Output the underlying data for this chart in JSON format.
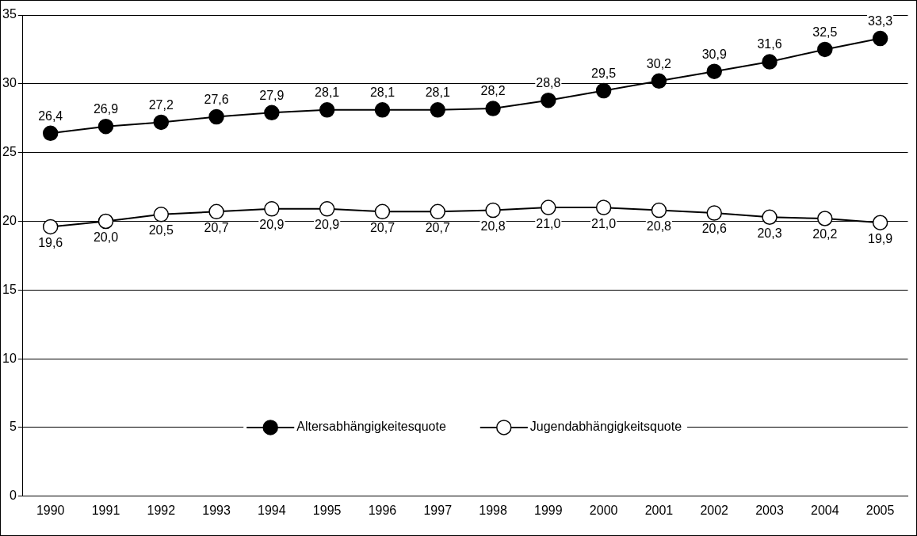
{
  "chart_data": {
    "type": "line",
    "categories": [
      "1990",
      "1991",
      "1992",
      "1993",
      "1994",
      "1995",
      "1996",
      "1997",
      "1998",
      "1999",
      "2000",
      "2001",
      "2002",
      "2003",
      "2004",
      "2005"
    ],
    "series": [
      {
        "name": "Altersabhängigkeitesquote",
        "color": "#000000",
        "values": [
          26.4,
          26.9,
          27.2,
          27.6,
          27.9,
          28.1,
          28.1,
          28.1,
          28.2,
          28.8,
          29.5,
          30.2,
          30.9,
          31.6,
          32.5,
          33.3
        ],
        "value_labels": [
          "26,4",
          "26,9",
          "27,2",
          "27,6",
          "27,9",
          "28,1",
          "28,1",
          "28,1",
          "28,2",
          "28,8",
          "29,5",
          "30,2",
          "30,9",
          "31,6",
          "32,5",
          "33,3"
        ]
      },
      {
        "name": "Jugendabhängigkeitsquote",
        "color": "#ffffff",
        "values": [
          19.6,
          20.0,
          20.5,
          20.7,
          20.9,
          20.9,
          20.7,
          20.7,
          20.8,
          21.0,
          21.0,
          20.8,
          20.6,
          20.3,
          20.2,
          19.9
        ],
        "value_labels": [
          "19,6",
          "20,0",
          "20,5",
          "20,7",
          "20,9",
          "20,9",
          "20,7",
          "20,7",
          "20,8",
          "21,0",
          "21,0",
          "20,8",
          "20,6",
          "20,3",
          "20,2",
          "19,9"
        ]
      }
    ],
    "ylim": [
      0,
      35
    ],
    "yticks": [
      0,
      5,
      10,
      15,
      20,
      25,
      30,
      35
    ],
    "grid": "y",
    "legend": "bottom",
    "marker": "circle",
    "line_style": "solid"
  }
}
